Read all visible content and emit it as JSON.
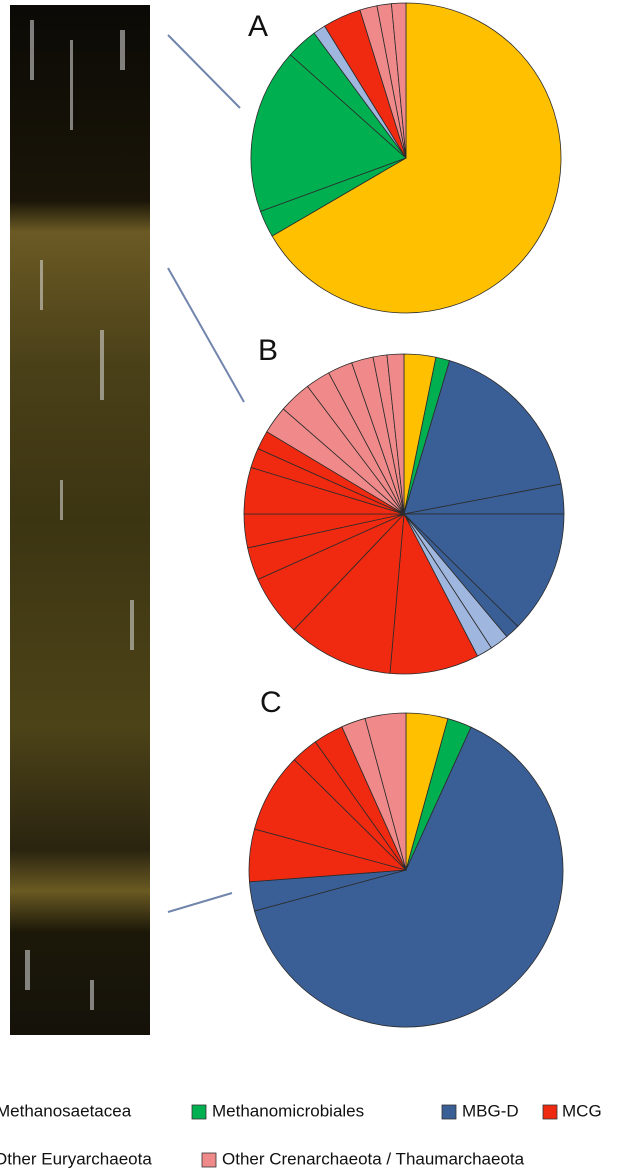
{
  "chart_data": [
    {
      "type": "pie",
      "title": "A",
      "values": [
        66.6,
        2.8,
        17.2,
        3.3,
        1.3,
        4.0,
        1.8,
        1.5,
        1.5
      ],
      "colors": [
        "#ffc000",
        "#00b050",
        "#00b050",
        "#00b050",
        "#9fb6df",
        "#f02a10",
        "#f08a8a",
        "#f08a8a",
        "#f08a8a"
      ]
    },
    {
      "type": "pie",
      "title": "B",
      "values": [
        3.2,
        1.4,
        17.4,
        3.0,
        12.4,
        1.5,
        1.9,
        1.6,
        9.0,
        10.7,
        6.2,
        3.3,
        3.4,
        4.7,
        2.0,
        1.9,
        2.8,
        3.3,
        2.5,
        2.5,
        2.2,
        1.4,
        1.7
      ],
      "colors": [
        "#ffc000",
        "#00b050",
        "#3a5f96",
        "#3a5f96",
        "#3a5f96",
        "#3a5f96",
        "#9fb6df",
        "#9fb6df",
        "#f02a10",
        "#f02a10",
        "#f02a10",
        "#f02a10",
        "#f02a10",
        "#f02a10",
        "#f02a10",
        "#f02a10",
        "#f08a8a",
        "#f08a8a",
        "#f08a8a",
        "#f08a8a",
        "#f08a8a",
        "#f08a8a",
        "#f08a8a"
      ]
    },
    {
      "type": "pie",
      "title": "C",
      "values": [
        4.3,
        2.5,
        64.0,
        3.0,
        5.4,
        8.2,
        2.8,
        3.1,
        2.5,
        4.2
      ],
      "colors": [
        "#ffc000",
        "#00b050",
        "#3a5f96",
        "#3a5f96",
        "#f02a10",
        "#f02a10",
        "#f02a10",
        "#f02a10",
        "#f08a8a",
        "#f08a8a"
      ]
    }
  ],
  "legend": [
    {
      "name": "Methanosaetacea",
      "color": "#ffc000"
    },
    {
      "name": "Methanomicrobiales",
      "color": "#00b050"
    },
    {
      "name": "MBG-D",
      "color": "#3a5f96"
    },
    {
      "name": "MCG",
      "color": "#f02a10"
    },
    {
      "name": "Other Euryarchaeota",
      "color": "#9fb6df"
    },
    {
      "name": "Other Crenarchaeota / Thaumarchaeota",
      "color": "#f08a8a"
    }
  ]
}
